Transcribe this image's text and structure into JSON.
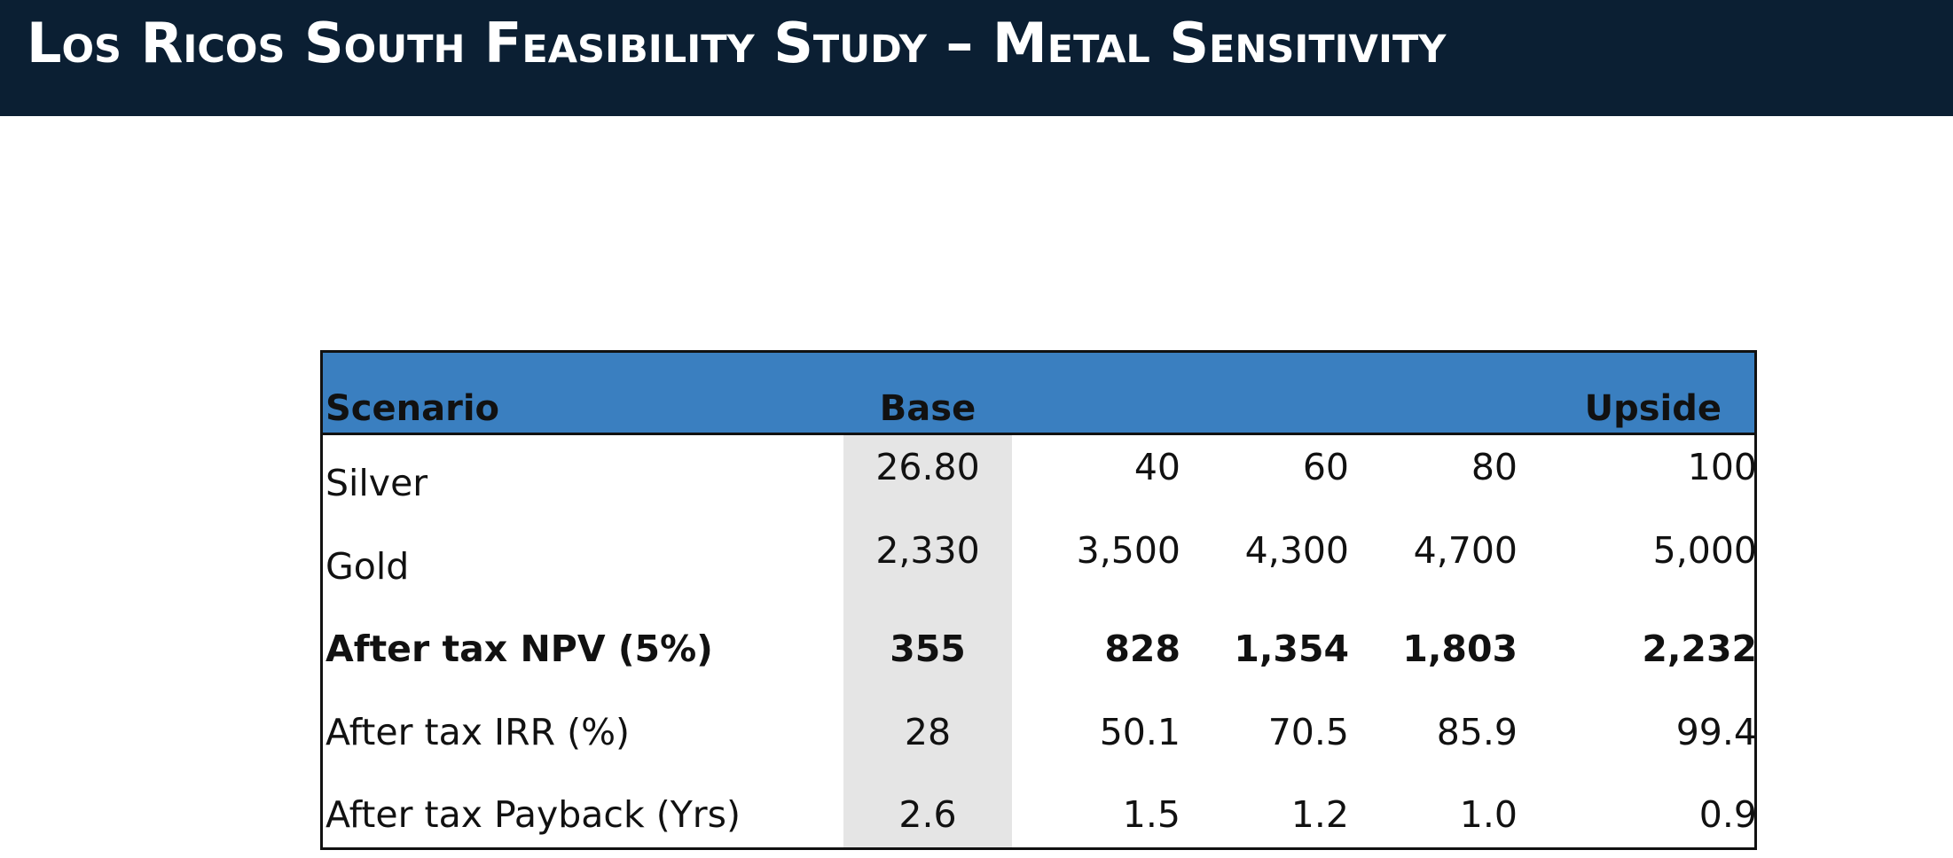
{
  "title": "Los Ricos South Feasibility Study – Metal Sensitivity",
  "table": {
    "header": {
      "scenario_label": "Scenario",
      "base_label": "Base",
      "upside_label": "Upside"
    },
    "rows": [
      {
        "label": "Silver",
        "values": [
          "26.80",
          "40",
          "60",
          "80",
          "100"
        ],
        "bold": false
      },
      {
        "label": "Gold",
        "values": [
          "2,330",
          "3,500",
          "4,300",
          "4,700",
          "5,000"
        ],
        "bold": false
      },
      {
        "label": "After tax NPV (5%)",
        "values": [
          "355",
          "828",
          "1,354",
          "1,803",
          "2,232"
        ],
        "bold": true
      },
      {
        "label": "After tax IRR (%)",
        "values": [
          "28",
          "50.1",
          "70.5",
          "85.9",
          "99.4"
        ],
        "bold": false
      },
      {
        "label": "After tax Payback (Yrs)",
        "values": [
          "2.6",
          "1.5",
          "1.2",
          "1.0",
          "0.9"
        ],
        "bold": false
      }
    ]
  },
  "colors": {
    "title_bar": "#0b1f33",
    "header_fill": "#3a7fc0",
    "base_shade": "#e5e5e5"
  }
}
